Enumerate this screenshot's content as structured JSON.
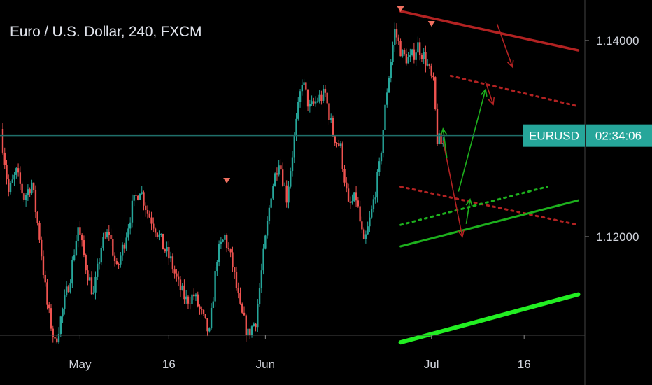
{
  "header": {
    "title": "Euro / U.S. Dollar, 240, FXCM"
  },
  "colors": {
    "background": "#000000",
    "up": "#26a69a",
    "down": "#ef5350",
    "badge": "#26a69a",
    "price_line": "#1f6f6a",
    "resistance": "#b22222",
    "support": "#1db01d",
    "support_bright": "#22ee22"
  },
  "chart_data": {
    "type": "candlestick",
    "symbol_badge": "EURUSD",
    "countdown": "02:34:06",
    "last_price": 1.13031,
    "ylim": [
      1.101,
      1.146
    ],
    "yticks": [
      {
        "value": 1.14,
        "label": "1.14000"
      },
      {
        "value": 1.12,
        "label": "1.12000"
      }
    ],
    "xlim": [
      0,
      150
    ],
    "xticks": [
      {
        "index": 20,
        "label": "May"
      },
      {
        "index": 43,
        "label": "16"
      },
      {
        "index": 68,
        "label": "Jun"
      },
      {
        "index": 111,
        "label": "Jul"
      },
      {
        "index": 135,
        "label": "16"
      }
    ],
    "path": [
      [
        0,
        1.131
      ],
      [
        2,
        1.1245
      ],
      [
        4,
        1.1265
      ],
      [
        6,
        1.124
      ],
      [
        8,
        1.1255
      ],
      [
        10,
        1.12
      ],
      [
        12,
        1.113
      ],
      [
        14,
        1.109
      ],
      [
        16,
        1.1125
      ],
      [
        18,
        1.116
      ],
      [
        20,
        1.121
      ],
      [
        22,
        1.117
      ],
      [
        24,
        1.114
      ],
      [
        26,
        1.119
      ],
      [
        28,
        1.1205
      ],
      [
        30,
        1.1165
      ],
      [
        32,
        1.1195
      ],
      [
        34,
        1.123
      ],
      [
        36,
        1.125
      ],
      [
        38,
        1.1225
      ],
      [
        40,
        1.121
      ],
      [
        42,
        1.119
      ],
      [
        44,
        1.1175
      ],
      [
        46,
        1.115
      ],
      [
        48,
        1.1135
      ],
      [
        50,
        1.114
      ],
      [
        52,
        1.112
      ],
      [
        54,
        1.11
      ],
      [
        56,
        1.118
      ],
      [
        58,
        1.12
      ],
      [
        60,
        1.117
      ],
      [
        62,
        1.1125
      ],
      [
        64,
        1.11
      ],
      [
        66,
        1.1115
      ],
      [
        68,
        1.118
      ],
      [
        70,
        1.1245
      ],
      [
        72,
        1.128
      ],
      [
        74,
        1.124
      ],
      [
        76,
        1.13
      ],
      [
        78,
        1.136
      ],
      [
        80,
        1.133
      ],
      [
        82,
        1.134
      ],
      [
        84,
        1.1345
      ],
      [
        86,
        1.1305
      ],
      [
        88,
        1.129
      ],
      [
        90,
        1.123
      ],
      [
        92,
        1.124
      ],
      [
        94,
        1.119
      ],
      [
        96,
        1.1225
      ],
      [
        98,
        1.127
      ],
      [
        100,
        1.135
      ],
      [
        102,
        1.141
      ],
      [
        104,
        1.1385
      ],
      [
        106,
        1.138
      ],
      [
        108,
        1.1395
      ],
      [
        110,
        1.138
      ],
      [
        112,
        1.1355
      ],
      [
        113,
        1.13
      ],
      [
        114,
        1.1295
      ]
    ],
    "seed": 7,
    "markers": [
      {
        "index": 58,
        "price": 1.125
      },
      {
        "index": 103,
        "price": 1.1425
      },
      {
        "index": 111,
        "price": 1.141
      }
    ],
    "lines": [
      {
        "name": "resistance-line",
        "p1": [
          103,
          1.143
        ],
        "p2": [
          149,
          1.139
        ],
        "color": "#b22222",
        "width": 3.5,
        "dash": ""
      },
      {
        "name": "dotted-red-upper",
        "p1": [
          116,
          1.1364
        ],
        "p2": [
          149,
          1.1333
        ],
        "color": "#b22222",
        "width": 3,
        "dash": "3,6"
      },
      {
        "name": "dotted-red-lower",
        "p1": [
          103,
          1.1251
        ],
        "p2": [
          149,
          1.1212
        ],
        "color": "#b22222",
        "width": 3,
        "dash": "3,6"
      },
      {
        "name": "dotted-green",
        "p1": [
          103,
          1.1212
        ],
        "p2": [
          141,
          1.1251
        ],
        "color": "#1db01d",
        "width": 3,
        "dash": "3,6"
      },
      {
        "name": "support-line",
        "p1": [
          103,
          1.119
        ],
        "p2": [
          149,
          1.1237
        ],
        "color": "#1db01d",
        "width": 3,
        "dash": ""
      },
      {
        "name": "support-line-bright",
        "p1": [
          103,
          1.1092
        ],
        "p2": [
          149,
          1.1141
        ],
        "color": "#22ee22",
        "width": 6,
        "dash": ""
      }
    ],
    "arrows": [
      {
        "name": "red-arrow-resistance",
        "p1": [
          128,
          1.1417
        ],
        "p2": [
          132,
          1.1373
        ],
        "color": "#b22222"
      },
      {
        "name": "red-arrow-upper-dotted",
        "p1": [
          125,
          1.1358
        ],
        "p2": [
          127,
          1.1335
        ],
        "color": "#b22222"
      },
      {
        "name": "red-arrow-down-main",
        "p1": [
          114,
          1.1298
        ],
        "p2": [
          119,
          1.12
        ],
        "color": "#b22222"
      },
      {
        "name": "green-arrow-bounce-small",
        "p1": [
          115,
          1.128
        ],
        "p2": [
          114,
          1.131
        ],
        "color": "#1db01d"
      },
      {
        "name": "green-arrow-up-main",
        "p1": [
          118,
          1.1246
        ],
        "p2": [
          125,
          1.135
        ],
        "color": "#1db01d"
      },
      {
        "name": "green-arrow-up-small",
        "p1": [
          120,
          1.1213
        ],
        "p2": [
          121,
          1.1238
        ],
        "color": "#1db01d"
      }
    ]
  }
}
